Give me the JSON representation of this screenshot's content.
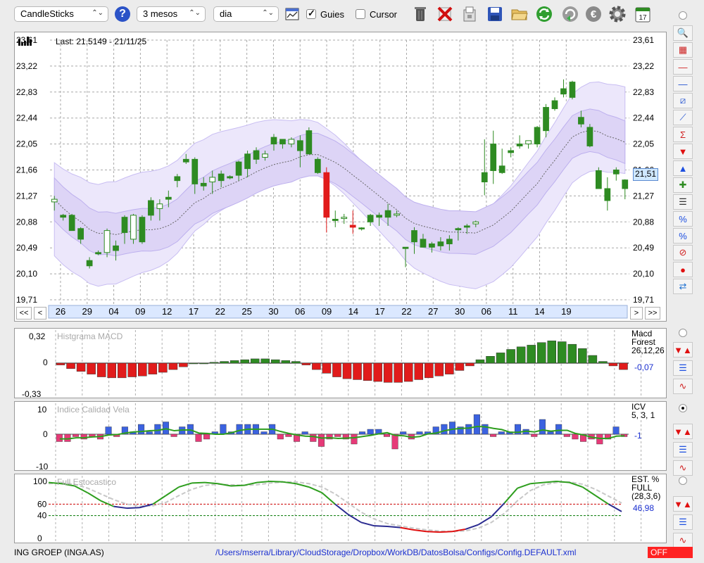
{
  "toolbar": {
    "chart_type": "CandleSticks",
    "period": "3 mesos",
    "interval": "dia",
    "guides_label": "Guies",
    "guides_checked": true,
    "cursor_label": "Cursor",
    "cursor_checked": false,
    "help_glyph": "?",
    "icons": [
      "chart-settings-icon",
      "trash-icon",
      "delete-icon",
      "export-icon",
      "save-icon",
      "open-folder-icon",
      "refresh-icon",
      "reload-icon",
      "currency-icon",
      "gear-icon",
      "calendar-icon"
    ],
    "calendar_day": "17"
  },
  "main_chart": {
    "last_label": "Last: 21.5149 - 21/11/25",
    "current_price": "21,51",
    "y_labels": [
      "23,61",
      "23,22",
      "22,83",
      "22,44",
      "22,05",
      "21,66",
      "21,27",
      "20,88",
      "20,49",
      "20,10",
      "19,71"
    ],
    "date_labels": [
      "26",
      "29",
      "04",
      "09",
      "12",
      "17",
      "22",
      "25",
      "30",
      "06",
      "09",
      "14",
      "17",
      "22",
      "27",
      "30",
      "06",
      "11",
      "14",
      "19"
    ],
    "nav": {
      "first": "<<",
      "prev": "<",
      "next": ">",
      "last": ">>"
    },
    "colors": {
      "up": "#2e8b22",
      "down": "#e11b1b",
      "band": "#ddd4f6",
      "band_line": "#bdb0ee"
    }
  },
  "macd": {
    "title": "Histgrama MACD",
    "y_labels": [
      "0,32",
      "0",
      "-0,33"
    ],
    "legend": [
      "Macd",
      "Forest",
      "26,12,26"
    ],
    "value": "-0,07"
  },
  "icv": {
    "title": "Indice Calidad Vela",
    "y_labels": [
      "10",
      "0",
      "-10"
    ],
    "legend": [
      "ICV",
      "5, 3, 1"
    ],
    "value": "-1"
  },
  "stoch": {
    "title": "Full Estocastico",
    "y_labels": [
      "100",
      "60",
      "40",
      "0"
    ],
    "legend": [
      "EST. %",
      "FULL",
      "(28,3,6)"
    ],
    "value": "46,98"
  },
  "status": {
    "ticker": "ING GROEP (INGA.AS)",
    "config_path": "/Users/mserra/Library/CloudStorage/Dropbox/WorkDB/DatosBolsa/Configs/Config.DEFAULT.xml",
    "state": "OFF"
  },
  "side_tools": [
    "zoom-icon",
    "indicator-icon",
    "horizontal-line-icon",
    "blue-line-icon",
    "channel-icon",
    "trend-line-icon",
    "fibonacci-icon",
    "arrow-down-icon",
    "arrow-up-icon",
    "buy-sell-icon",
    "grid-lines-icon",
    "percent-range-icon",
    "percent-lines-icon",
    "stop-icon",
    "record-icon",
    "swap-icon"
  ],
  "chart_data": [
    {
      "type": "candlestick",
      "ylim": [
        19.71,
        23.61
      ],
      "categories": [
        "26",
        "29",
        "04",
        "09",
        "12",
        "17",
        "22",
        "25",
        "30",
        "06",
        "09",
        "14",
        "17",
        "22",
        "27",
        "30",
        "06",
        "11",
        "14",
        "19"
      ],
      "ohlc": [
        [
          21.18,
          21.27,
          21.05,
          21.22
        ],
        [
          20.98,
          21.0,
          20.9,
          20.95
        ],
        [
          20.98,
          21.0,
          20.78,
          20.75
        ],
        [
          20.78,
          20.8,
          20.55,
          20.62
        ],
        [
          20.22,
          20.35,
          20.18,
          20.3
        ],
        [
          20.42,
          20.45,
          20.38,
          20.4
        ],
        [
          20.42,
          20.78,
          20.35,
          20.75
        ],
        [
          20.45,
          20.6,
          20.3,
          20.52
        ],
        [
          20.72,
          20.98,
          20.55,
          20.95
        ],
        [
          20.62,
          21.0,
          20.55,
          20.98
        ],
        [
          20.58,
          20.98,
          20.55,
          20.95
        ],
        [
          20.98,
          21.25,
          20.9,
          21.2
        ],
        [
          21.08,
          21.22,
          20.9,
          21.15
        ],
        [
          21.22,
          21.35,
          21.1,
          21.25
        ],
        [
          21.56,
          21.6,
          21.4,
          21.5
        ],
        [
          21.82,
          21.9,
          21.75,
          21.78
        ],
        [
          21.45,
          21.85,
          21.3,
          21.82
        ],
        [
          21.42,
          21.55,
          21.35,
          21.46
        ],
        [
          21.48,
          21.65,
          21.3,
          21.55
        ],
        [
          21.5,
          21.65,
          21.4,
          21.6
        ],
        [
          21.54,
          21.58,
          21.52,
          21.56
        ],
        [
          21.78,
          21.8,
          21.5,
          21.58
        ],
        [
          21.68,
          21.95,
          21.55,
          21.9
        ],
        [
          21.82,
          22.0,
          21.75,
          21.95
        ],
        [
          21.85,
          21.95,
          21.8,
          21.9
        ],
        [
          22.15,
          22.2,
          21.95,
          22.05
        ],
        [
          22.05,
          22.1,
          21.98,
          22.12
        ],
        [
          22.05,
          22.15,
          22.0,
          22.12
        ],
        [
          21.95,
          22.18,
          21.7,
          22.1
        ],
        [
          22.25,
          22.3,
          21.92,
          21.9
        ],
        [
          21.82,
          21.85,
          21.6,
          21.62
        ],
        [
          21.62,
          21.7,
          20.72,
          20.95
        ],
        [
          20.92,
          21.05,
          20.8,
          20.9
        ],
        [
          20.93,
          21.0,
          20.85,
          20.95
        ],
        [
          20.83,
          21.05,
          20.7,
          20.8
        ],
        [
          20.78,
          20.8,
          20.75,
          20.79
        ],
        [
          20.98,
          21.0,
          20.82,
          20.88
        ],
        [
          20.98,
          21.02,
          20.82,
          20.95
        ],
        [
          21.05,
          21.15,
          20.82,
          20.95
        ],
        [
          20.98,
          21.05,
          20.95,
          21.0
        ],
        [
          20.48,
          20.5,
          20.2,
          20.5
        ],
        [
          20.58,
          20.8,
          20.4,
          20.75
        ],
        [
          20.62,
          20.7,
          20.5,
          20.5
        ],
        [
          20.5,
          20.58,
          20.42,
          20.55
        ],
        [
          20.52,
          20.65,
          20.45,
          20.58
        ],
        [
          20.62,
          20.68,
          20.45,
          20.55
        ],
        [
          20.76,
          20.8,
          20.6,
          20.78
        ],
        [
          20.82,
          20.85,
          20.7,
          20.8
        ],
        [
          20.85,
          20.9,
          20.8,
          20.88
        ],
        [
          21.48,
          22.12,
          21.28,
          21.62
        ],
        [
          22.05,
          22.25,
          21.45,
          21.65
        ],
        [
          21.72,
          21.98,
          21.6,
          21.62
        ],
        [
          21.95,
          22.0,
          21.85,
          21.92
        ],
        [
          22.05,
          22.18,
          21.98,
          22.02
        ],
        [
          22.05,
          22.1,
          21.98,
          22.1
        ],
        [
          22.3,
          22.32,
          22.0,
          22.05
        ],
        [
          22.25,
          22.65,
          22.15,
          22.6
        ],
        [
          22.7,
          22.75,
          22.55,
          22.58
        ],
        [
          22.88,
          23.02,
          22.75,
          22.8
        ],
        [
          22.98,
          23.0,
          22.72,
          22.75
        ],
        [
          22.45,
          22.55,
          22.3,
          22.35
        ],
        [
          22.3,
          22.35,
          22.0,
          22.02
        ],
        [
          21.65,
          21.7,
          21.4,
          21.38
        ],
        [
          21.38,
          21.55,
          21.05,
          21.2
        ],
        [
          21.66,
          21.7,
          21.5,
          21.6
        ],
        [
          21.38,
          21.52,
          21.22,
          21.51
        ]
      ]
    },
    {
      "type": "bar",
      "title": "Histgrama MACD",
      "ylim": [
        -0.33,
        0.32
      ],
      "values": [
        -0.02,
        -0.06,
        -0.09,
        -0.12,
        -0.15,
        -0.16,
        -0.16,
        -0.15,
        -0.14,
        -0.12,
        -0.1,
        -0.07,
        -0.04,
        0,
        0,
        0.01,
        0.02,
        0.03,
        0.04,
        0.05,
        0.05,
        0.04,
        0.03,
        0.02,
        -0.02,
        -0.07,
        -0.11,
        -0.15,
        -0.17,
        -0.18,
        -0.19,
        -0.2,
        -0.21,
        -0.21,
        -0.2,
        -0.18,
        -0.16,
        -0.14,
        -0.12,
        -0.08,
        -0.03,
        0.04,
        0.08,
        0.12,
        0.16,
        0.19,
        0.21,
        0.24,
        0.26,
        0.25,
        0.22,
        0.17,
        0.09,
        0.02,
        -0.03,
        -0.07
      ]
    }
  ]
}
